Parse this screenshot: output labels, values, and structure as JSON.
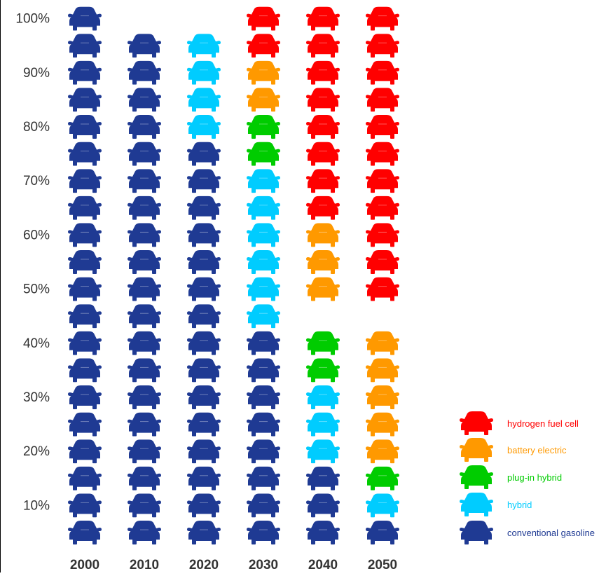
{
  "colors": {
    "hydrogen fuel cell": "#ff0000",
    "battery electric": "#ff9900",
    "plug-in hybrid": "#00cc00",
    "hybrid": "#00ccff",
    "conventional gasoline": "#1f3a93"
  },
  "chart_data": {
    "type": "pictograph",
    "icon": "car-icon",
    "icons_per_column": 20,
    "unit_percent_per_icon": 5,
    "categories": [
      "2000",
      "2010",
      "2020",
      "2030",
      "2040",
      "2050"
    ],
    "y_ticks": [
      "10%",
      "20%",
      "30%",
      "40%",
      "50%",
      "60%",
      "70%",
      "80%",
      "90%",
      "100%"
    ],
    "ylim": [
      0,
      100
    ],
    "legend_position": "bottom-right",
    "series": [
      {
        "name": "conventional gasoline",
        "values": [
          100,
          99,
          75,
          40,
          15,
          5
        ]
      },
      {
        "name": "hybrid",
        "values": [
          0,
          1,
          24,
          30,
          15,
          5
        ]
      },
      {
        "name": "plug-in hybrid",
        "values": [
          0,
          0,
          0.5,
          10,
          12.5,
          5
        ]
      },
      {
        "name": "battery electric",
        "values": [
          0,
          0,
          0.5,
          10,
          17.5,
          27.5
        ]
      },
      {
        "name": "hydrogen fuel cell",
        "values": [
          0,
          0,
          0,
          10,
          40,
          57.5
        ]
      }
    ],
    "legend": [
      "hydrogen fuel cell",
      "battery electric",
      "plug-in hybrid",
      "hybrid",
      "conventional gasoline"
    ]
  }
}
